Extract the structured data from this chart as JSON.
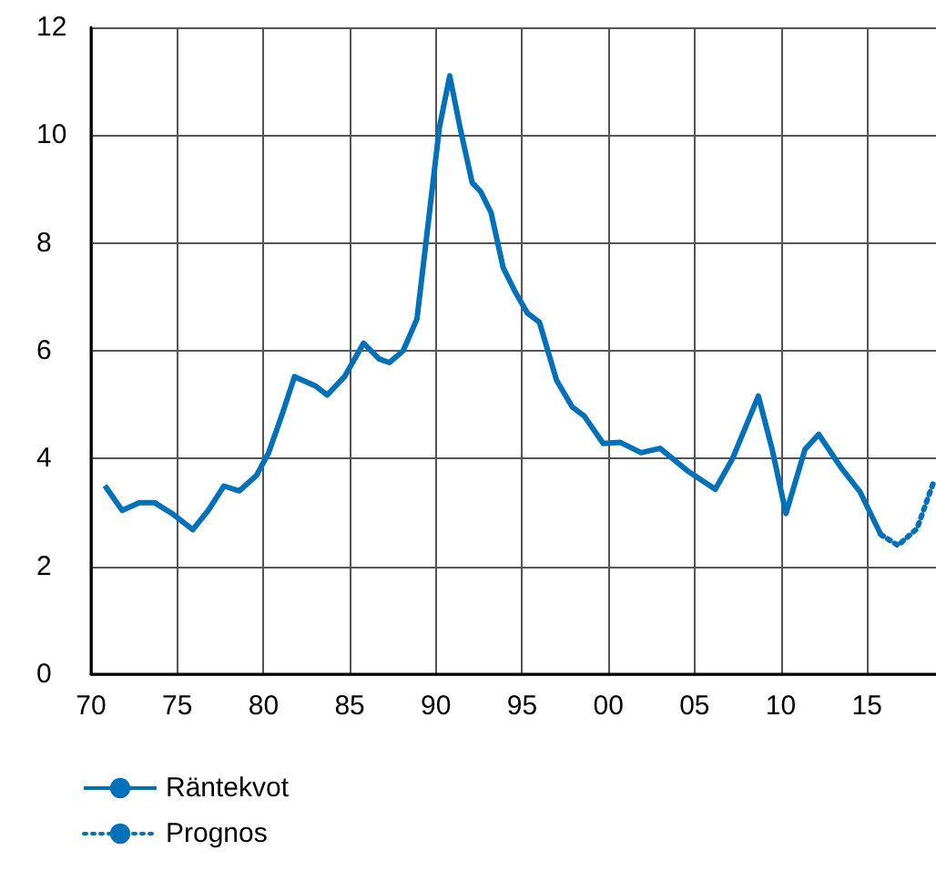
{
  "chart_data": {
    "type": "line",
    "xlim": [
      1970,
      2019
    ],
    "xticks": [
      {
        "value": 1970,
        "label": "70"
      },
      {
        "value": 1975,
        "label": "75"
      },
      {
        "value": 1980,
        "label": "80"
      },
      {
        "value": 1985,
        "label": "85"
      },
      {
        "value": 1990,
        "label": "90"
      },
      {
        "value": 1995,
        "label": "95"
      },
      {
        "value": 2000,
        "label": "00"
      },
      {
        "value": 2005,
        "label": "05"
      },
      {
        "value": 2010,
        "label": "10"
      },
      {
        "value": 2015,
        "label": "15"
      }
    ],
    "ylim": [
      0,
      12
    ],
    "yticks": [
      0,
      2,
      4,
      6,
      8,
      10,
      12
    ],
    "grid": true,
    "legend": "bottom left",
    "marker": "none",
    "series": [
      {
        "name": "Räntekvot",
        "color": "#0070b8",
        "line_style": "solid",
        "x": [
          1970.8,
          1971.8,
          1972.8,
          1973.7,
          1974.7,
          1975.9,
          1976.8,
          1977.7,
          1978.6,
          1979.6,
          1980.3,
          1981.1,
          1981.8,
          1983.0,
          1983.7,
          1984.7,
          1985.8,
          1986.7,
          1987.3,
          1988.1,
          1988.9,
          1989.5,
          1990.2,
          1990.8,
          1991.4,
          1992.1,
          1992.6,
          1993.2,
          1993.9,
          1994.6,
          1995.3,
          1996.0,
          1997.0,
          1997.9,
          1998.6,
          1999.7,
          2000.7,
          2001.9,
          2003.0,
          2004.6,
          2006.2,
          2007.2,
          2008.7,
          2009.5,
          2010.3,
          2011.4,
          2012.2,
          2013.5,
          2014.6,
          2015.8
        ],
        "values": [
          3.5,
          3.04,
          3.18,
          3.18,
          2.98,
          2.68,
          3.04,
          3.49,
          3.4,
          3.69,
          4.11,
          4.84,
          5.52,
          5.35,
          5.18,
          5.52,
          6.14,
          5.85,
          5.78,
          6.0,
          6.59,
          8.22,
          10.14,
          11.1,
          10.14,
          9.12,
          8.95,
          8.56,
          7.54,
          7.09,
          6.7,
          6.53,
          5.45,
          4.96,
          4.79,
          4.28,
          4.3,
          4.11,
          4.19,
          3.77,
          3.43,
          4.0,
          5.16,
          4.17,
          2.98,
          4.17,
          4.45,
          3.83,
          3.38,
          2.59
        ]
      },
      {
        "name": "Prognos",
        "color": "#0070b8",
        "line_style": "dotted",
        "x": [
          2015.8,
          2016.8,
          2017.9,
          2018.9
        ],
        "values": [
          2.59,
          2.39,
          2.7,
          3.6
        ]
      }
    ]
  }
}
